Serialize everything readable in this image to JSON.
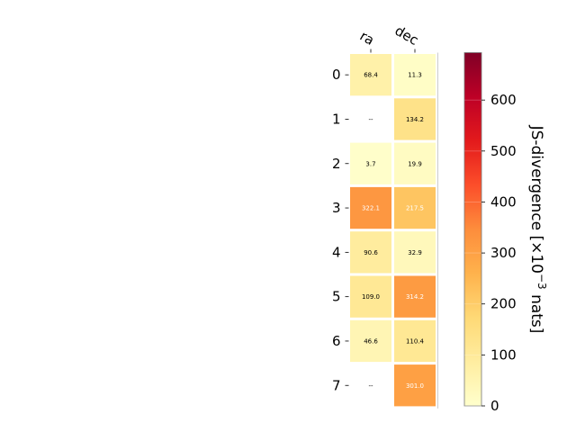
{
  "chart_data": {
    "type": "heatmap",
    "columns": [
      "ra",
      "dec"
    ],
    "rows": [
      "0",
      "1",
      "2",
      "3",
      "4",
      "5",
      "6",
      "7"
    ],
    "values": [
      [
        68.4,
        11.3
      ],
      [
        null,
        134.2
      ],
      [
        3.7,
        19.9
      ],
      [
        322.1,
        217.5
      ],
      [
        90.6,
        32.9
      ],
      [
        109.0,
        314.2
      ],
      [
        46.6,
        110.4
      ],
      [
        null,
        301.0
      ]
    ],
    "cell_labels": [
      [
        "68.4",
        "11.3"
      ],
      [
        "--",
        "134.2"
      ],
      [
        "3.7",
        "19.9"
      ],
      [
        "322.1",
        "217.5"
      ],
      [
        "90.6",
        "32.9"
      ],
      [
        "109.0",
        "314.2"
      ],
      [
        "46.6",
        "110.4"
      ],
      [
        "--",
        "301.0"
      ]
    ],
    "colormap": "YlOrRd",
    "colorbar": {
      "label_main": "JS-divergence [×10",
      "label_exp": "−3",
      "label_unit": " nats]",
      "range": [
        0,
        693
      ],
      "ticks": [
        0,
        100,
        200,
        300,
        400,
        500,
        600
      ],
      "tick_labels": [
        "0",
        "100",
        "200",
        "300",
        "400",
        "500",
        "600"
      ]
    }
  }
}
